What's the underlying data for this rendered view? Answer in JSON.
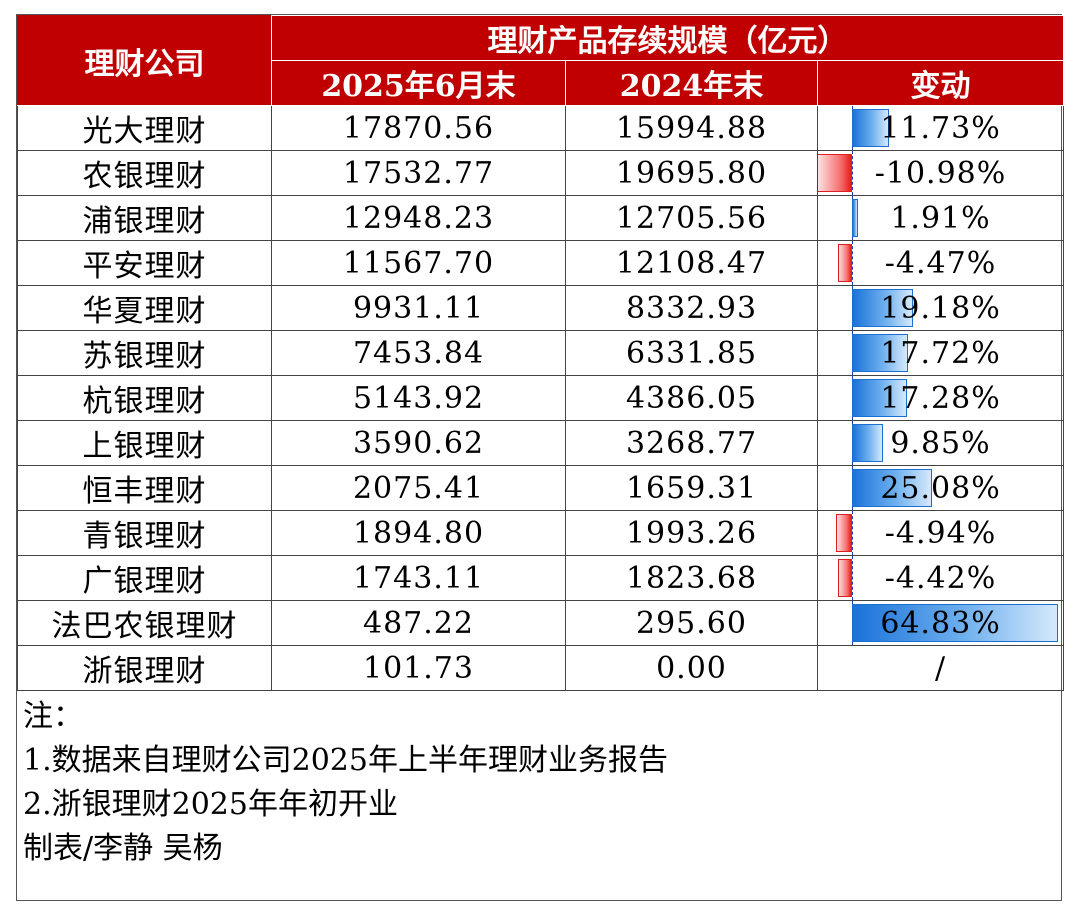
{
  "table": {
    "company_header": "理财公司",
    "group_header": "理财产品存续规模（亿元）",
    "col_2025": "2025年6月末",
    "col_2024": "2024年末",
    "col_change": "变动",
    "colors": {
      "header_bg": "#c00000",
      "positive_bar": "#1a73d9",
      "negative_bar": "#e81c1c"
    }
  },
  "chart_data": {
    "type": "table",
    "columns": [
      "理财公司",
      "2025年6月末",
      "2024年末",
      "变动"
    ],
    "rows": [
      {
        "company": "光大理财",
        "jun2025": "17870.56",
        "end2024": "15994.88",
        "change": "11.73%",
        "change_value": 11.73
      },
      {
        "company": "农银理财",
        "jun2025": "17532.77",
        "end2024": "19695.80",
        "change": "-10.98%",
        "change_value": -10.98
      },
      {
        "company": "浦银理财",
        "jun2025": "12948.23",
        "end2024": "12705.56",
        "change": "1.91%",
        "change_value": 1.91
      },
      {
        "company": "平安理财",
        "jun2025": "11567.70",
        "end2024": "12108.47",
        "change": "-4.47%",
        "change_value": -4.47
      },
      {
        "company": "华夏理财",
        "jun2025": "9931.11",
        "end2024": "8332.93",
        "change": "19.18%",
        "change_value": 19.18
      },
      {
        "company": "苏银理财",
        "jun2025": "7453.84",
        "end2024": "6331.85",
        "change": "17.72%",
        "change_value": 17.72
      },
      {
        "company": "杭银理财",
        "jun2025": "5143.92",
        "end2024": "4386.05",
        "change": "17.28%",
        "change_value": 17.28
      },
      {
        "company": "上银理财",
        "jun2025": "3590.62",
        "end2024": "3268.77",
        "change": "9.85%",
        "change_value": 9.85
      },
      {
        "company": "恒丰理财",
        "jun2025": "2075.41",
        "end2024": "1659.31",
        "change": "25.08%",
        "change_value": 25.08
      },
      {
        "company": "青银理财",
        "jun2025": "1894.80",
        "end2024": "1993.26",
        "change": "-4.94%",
        "change_value": -4.94
      },
      {
        "company": "广银理财",
        "jun2025": "1743.11",
        "end2024": "1823.68",
        "change": "-4.42%",
        "change_value": -4.42
      },
      {
        "company": "法巴农银理财",
        "jun2025": "487.22",
        "end2024": "295.60",
        "change": "64.83%",
        "change_value": 64.83
      },
      {
        "company": "浙银理财",
        "jun2025": "101.73",
        "end2024": "0.00",
        "change": "/",
        "change_value": null
      }
    ]
  },
  "notes": {
    "title": "注：",
    "line1": "1.数据来自理财公司2025年上半年理财业务报告",
    "line2": "2.浙银理财2025年年初开业",
    "credit": "制表/李静 吴杨"
  }
}
